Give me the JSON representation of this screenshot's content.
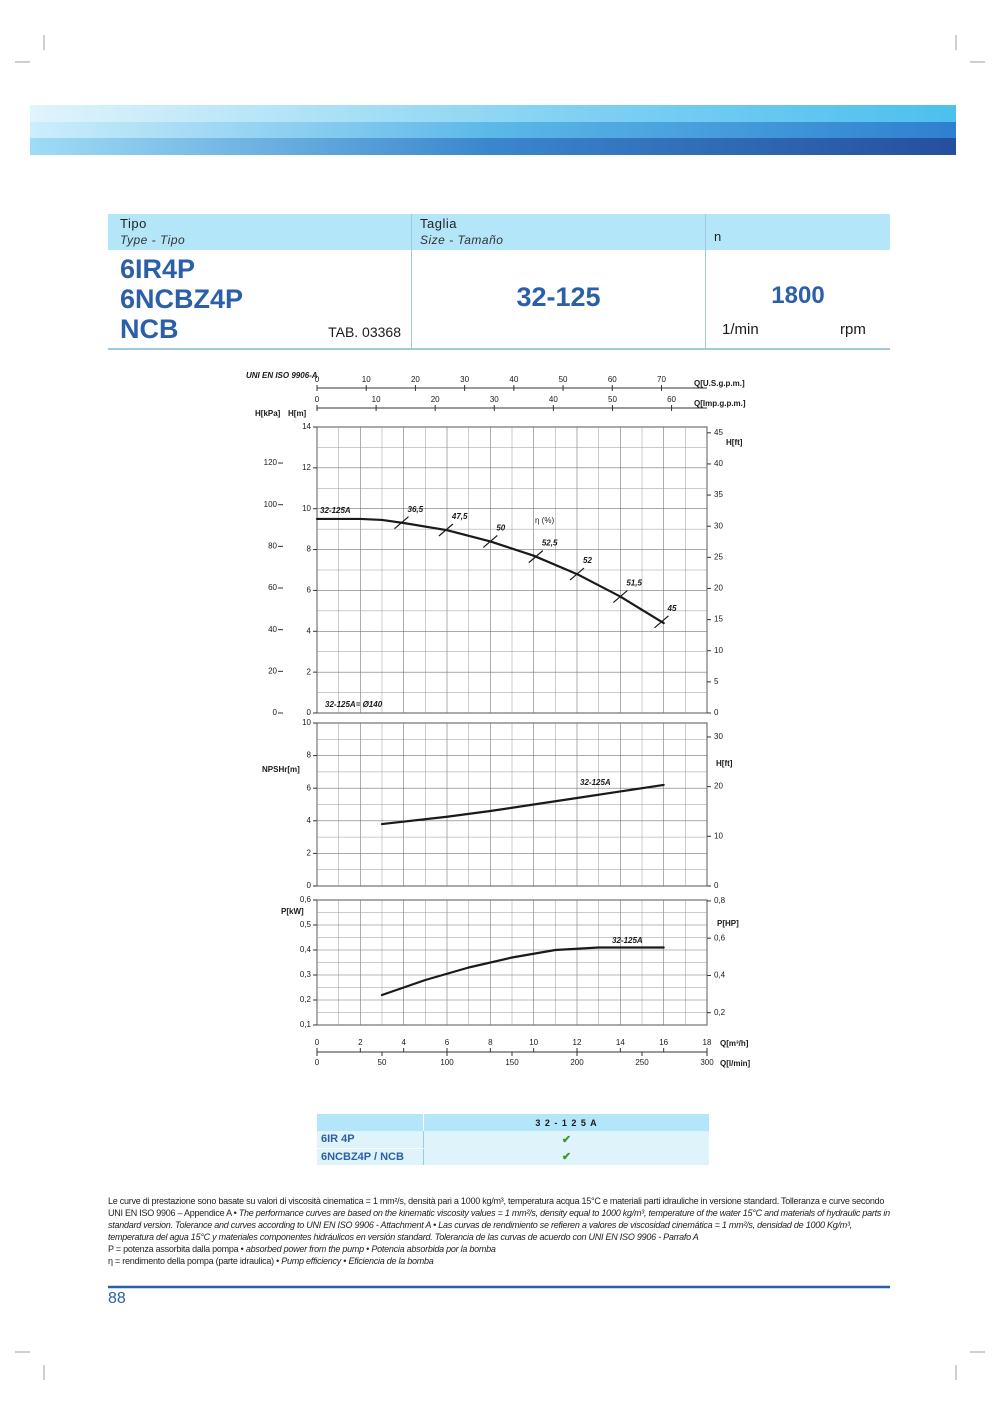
{
  "header": {
    "tipo_label": "Tipo",
    "tipo_sub": "Type - Tipo",
    "taglia_label": "Taglia",
    "taglia_sub": "Size - Tamaño",
    "n_label": "n",
    "models": [
      "6IR4P",
      "6NCBZ4P",
      "NCB"
    ],
    "tab": "TAB. 03368",
    "size": "32-125",
    "speed": "1800",
    "unit1": "1/min",
    "unit2": "rpm"
  },
  "chart_data": [
    {
      "type": "line",
      "title": "UNI EN ISO 9906-A",
      "xlim": [
        0,
        18
      ],
      "xticks": [
        0,
        2,
        4,
        6,
        8,
        10,
        12,
        14,
        16,
        18
      ],
      "ylabel": "H[m]",
      "ylim": [
        0,
        14
      ],
      "yticks": [
        0,
        2,
        4,
        6,
        8,
        10,
        12,
        14
      ],
      "y2label": "H[ft]",
      "y2lim": [
        0,
        45.93
      ],
      "y2ticks": [
        0,
        5,
        10,
        15,
        20,
        25,
        30,
        35,
        40,
        45
      ],
      "y3label": "H[kPa]",
      "y3lim": [
        0,
        137.3
      ],
      "y3ticks": [
        0,
        20,
        40,
        60,
        80,
        100,
        120
      ],
      "top_axes": [
        {
          "label": "Q[U.S.g.p.m.]",
          "lim": [
            0,
            79.25
          ],
          "ticks": [
            0,
            10,
            20,
            30,
            40,
            50,
            60,
            70
          ]
        },
        {
          "label": "Q[Imp.g.p.m.]",
          "lim": [
            0,
            66
          ],
          "ticks": [
            0,
            10,
            20,
            30,
            40,
            50,
            60
          ]
        }
      ],
      "grid": true,
      "series": [
        {
          "name": "32-125A",
          "color": "#1a1a1a",
          "x": [
            0,
            2,
            3,
            4,
            6,
            8,
            10,
            12,
            14,
            16
          ],
          "values": [
            9.5,
            9.5,
            9.45,
            9.3,
            8.95,
            8.4,
            7.7,
            6.8,
            5.7,
            4.4
          ]
        }
      ],
      "efficiency": {
        "label": "η (%)",
        "x": [
          3.9,
          5.95,
          8,
          10.1,
          12,
          14,
          15.9
        ],
        "values": [
          36.5,
          47.5,
          50,
          52.5,
          52,
          51.5,
          45
        ],
        "value_labels": [
          "36,5",
          "47,5",
          "50",
          "52,5",
          "52",
          "51,5",
          "45"
        ]
      },
      "annotation": "32-125A= Ø140"
    },
    {
      "type": "line",
      "xlim": [
        0,
        18
      ],
      "xticks": [
        0,
        2,
        4,
        6,
        8,
        10,
        12,
        14,
        16,
        18
      ],
      "ylabel": "NPSHr[m]",
      "ylim": [
        0,
        10
      ],
      "yticks": [
        0,
        2,
        4,
        6,
        8,
        10
      ],
      "y2label": "H[ft]",
      "y2lim": [
        0,
        32.81
      ],
      "y2ticks": [
        0,
        10,
        20,
        30
      ],
      "grid": true,
      "series": [
        {
          "name": "32-125A",
          "color": "#1a1a1a",
          "x": [
            3,
            6,
            8,
            10,
            12,
            14,
            16
          ],
          "values": [
            3.8,
            4.25,
            4.6,
            5.0,
            5.4,
            5.8,
            6.2
          ]
        }
      ]
    },
    {
      "type": "line",
      "xlabel": "Q[m³/h]",
      "xlim": [
        0,
        18
      ],
      "xticks": [
        0,
        2,
        4,
        6,
        8,
        10,
        12,
        14,
        16,
        18
      ],
      "x2label": "Q[l/min]",
      "x2lim": [
        0,
        300
      ],
      "x2ticks": [
        0,
        50,
        100,
        150,
        200,
        250,
        300
      ],
      "ylabel": "P[kW]",
      "ylim": [
        0.1,
        0.6
      ],
      "yticks": [
        {
          "value": 0.1,
          "label": "0,1"
        },
        {
          "value": 0.2,
          "label": "0,2"
        },
        {
          "value": 0.3,
          "label": "0,3"
        },
        {
          "value": 0.4,
          "label": "0,4"
        },
        {
          "value": 0.5,
          "label": "0,5"
        },
        {
          "value": 0.6,
          "label": "0,6"
        }
      ],
      "y2label": "P[HP]",
      "y2lim": [
        0.134,
        0.805
      ],
      "y2ticks": [
        {
          "value": 0.2,
          "label": "0,2"
        },
        {
          "value": 0.4,
          "label": "0,4"
        },
        {
          "value": 0.6,
          "label": "0,6"
        },
        {
          "value": 0.8,
          "label": "0,8"
        }
      ],
      "grid": true,
      "series": [
        {
          "name": "32-125A",
          "color": "#1a1a1a",
          "x": [
            3,
            5,
            7,
            9,
            11,
            13,
            16
          ],
          "values": [
            0.22,
            0.28,
            0.33,
            0.37,
            0.4,
            0.41,
            0.41
          ]
        }
      ]
    }
  ],
  "selection": {
    "header": "3 2 - 1 2 5 A",
    "rows": [
      [
        "6IR 4P",
        "✔"
      ],
      [
        "6NCBZ4P / NCB",
        "✔"
      ]
    ]
  },
  "notes": [
    [
      {
        "text": "Le curve di prestazione sono basate su valori di viscosità cinematica = 1 mm²/s, densità pari a 1000 kg/m³, temperatura acqua 15°C e materiali parti idrauliche in versione standard. Tolleranza e curve secondo UNI EN ISO 9906 – Appendice A • ",
        "italic": false
      },
      {
        "text": "The performance curves are based on the kinematic viscosity values = 1 mm²/s, density equal to 1000 kg/m³, temperature of the water 15°C and materials of hydraulic parts in standard version. Tolerance and curves according to UNI EN ISO 9906 - Attachment A • Las curvas de rendimiento se refieren a valores de viscosidad cinemática = 1 mm²/s, densidad de 1000 Kg/m³, temperatura del agua 15°C y materiales componentes hidráulicos en versión standard. Tolerancia de las curvas de acuerdo con UNI EN ISO 9906 - Parrafo A",
        "italic": true
      }
    ],
    [
      {
        "text": "P = potenza assorbita dalla pompa • ",
        "italic": false
      },
      {
        "text": "absorbed power from the pump • Potencia absorbida por la bomba",
        "italic": true
      }
    ],
    [
      {
        "text": "η = rendimento della pompa (parte idraulica) • ",
        "italic": false
      },
      {
        "text": "Pump efficiency • Eficiencia de la bomba",
        "italic": true
      }
    ]
  ],
  "page_number": "88"
}
